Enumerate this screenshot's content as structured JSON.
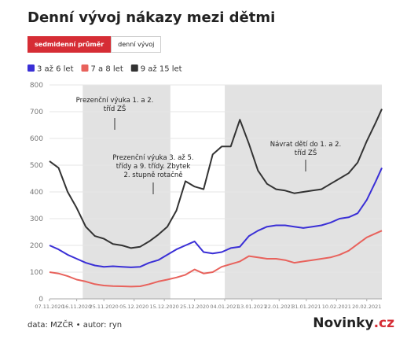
{
  "header": {
    "title": "Denní vývoj nákazy mezi dětmi"
  },
  "buttons": [
    "sedmidenní průměr",
    "denní vývoj"
  ],
  "chart_data": {
    "type": "line",
    "x": [
      "07.11.2020",
      "10.11.2020",
      "13.11.2020",
      "16.11.2020",
      "19.11.2020",
      "22.11.2020",
      "25.11.2020",
      "28.11.2020",
      "01.12.2020",
      "04.12.2020",
      "07.12.2020",
      "10.12.2020",
      "13.12.2020",
      "16.12.2020",
      "19.12.2020",
      "22.12.2020",
      "25.12.2020",
      "28.12.2020",
      "31.12.2020",
      "03.01.2021",
      "06.01.2021",
      "09.01.2021",
      "12.01.2021",
      "15.01.2021",
      "18.01.2021",
      "21.01.2021",
      "24.01.2021",
      "27.01.2021",
      "30.01.2021",
      "02.02.2021",
      "05.02.2021",
      "08.02.2021",
      "11.02.2021",
      "14.02.2021",
      "17.02.2021",
      "20.02.2021",
      "23.02.2021",
      "25.02.2021"
    ],
    "series": [
      {
        "name": "3 až 6 let",
        "color": "#3a2fd6",
        "values": [
          200,
          185,
          165,
          150,
          135,
          125,
          120,
          122,
          120,
          118,
          120,
          135,
          145,
          165,
          185,
          200,
          215,
          175,
          170,
          175,
          190,
          195,
          235,
          255,
          270,
          275,
          275,
          270,
          265,
          270,
          275,
          285,
          300,
          305,
          320,
          370,
          440,
          490
        ]
      },
      {
        "name": "7 a 8 let",
        "color": "#e8625c",
        "values": [
          100,
          95,
          85,
          72,
          65,
          55,
          50,
          48,
          47,
          46,
          47,
          55,
          65,
          72,
          80,
          90,
          110,
          95,
          100,
          120,
          130,
          140,
          160,
          155,
          150,
          150,
          145,
          135,
          140,
          145,
          150,
          155,
          165,
          180,
          205,
          230,
          245,
          255
        ]
      },
      {
        "name": "9 až 15 let",
        "color": "#333333",
        "values": [
          515,
          490,
          400,
          340,
          270,
          235,
          225,
          205,
          200,
          190,
          195,
          215,
          240,
          270,
          330,
          440,
          420,
          410,
          540,
          570,
          570,
          670,
          580,
          480,
          430,
          410,
          405,
          395,
          400,
          405,
          410,
          430,
          450,
          470,
          510,
          590,
          660,
          710
        ]
      }
    ],
    "xlim": [
      "07.11.2020",
      "25.02.2021"
    ],
    "xticks": [
      "07.11.2020",
      "16.11.2020",
      "25.11.2020",
      "05.12.2020",
      "15.12.2020",
      "25.12.2020",
      "04.01.2021",
      "13.01.2021",
      "22.01.2021",
      "31.01.2021",
      "10.02.2021",
      "20.02.2021"
    ],
    "ylim": [
      0,
      800
    ],
    "yticks": [
      0,
      100,
      200,
      300,
      400,
      500,
      600,
      700,
      800
    ],
    "grid": true,
    "shaded_periods": [
      {
        "start": "18.11.2020",
        "end": "17.12.2020"
      },
      {
        "start": "04.01.2021",
        "end": "25.02.2021"
      }
    ],
    "shade_color": "#e2e2e2",
    "annotations": [
      {
        "lines": [
          "Prezenční výuka 1. a 2.",
          "tříd ZŠ"
        ]
      },
      {
        "lines": [
          "Prezenční výuka 3. až 5.",
          "třídy a 9. třídy. Zbytek",
          "2. stupně rotačně"
        ]
      },
      {
        "lines": [
          "Návrat dětí do 1. a 2.",
          "tříd ZŠ"
        ]
      }
    ]
  },
  "footer": {
    "source": "data: MZČR • autor: ryn",
    "logo": "Novinky",
    "logo_suffix": ".cz"
  }
}
